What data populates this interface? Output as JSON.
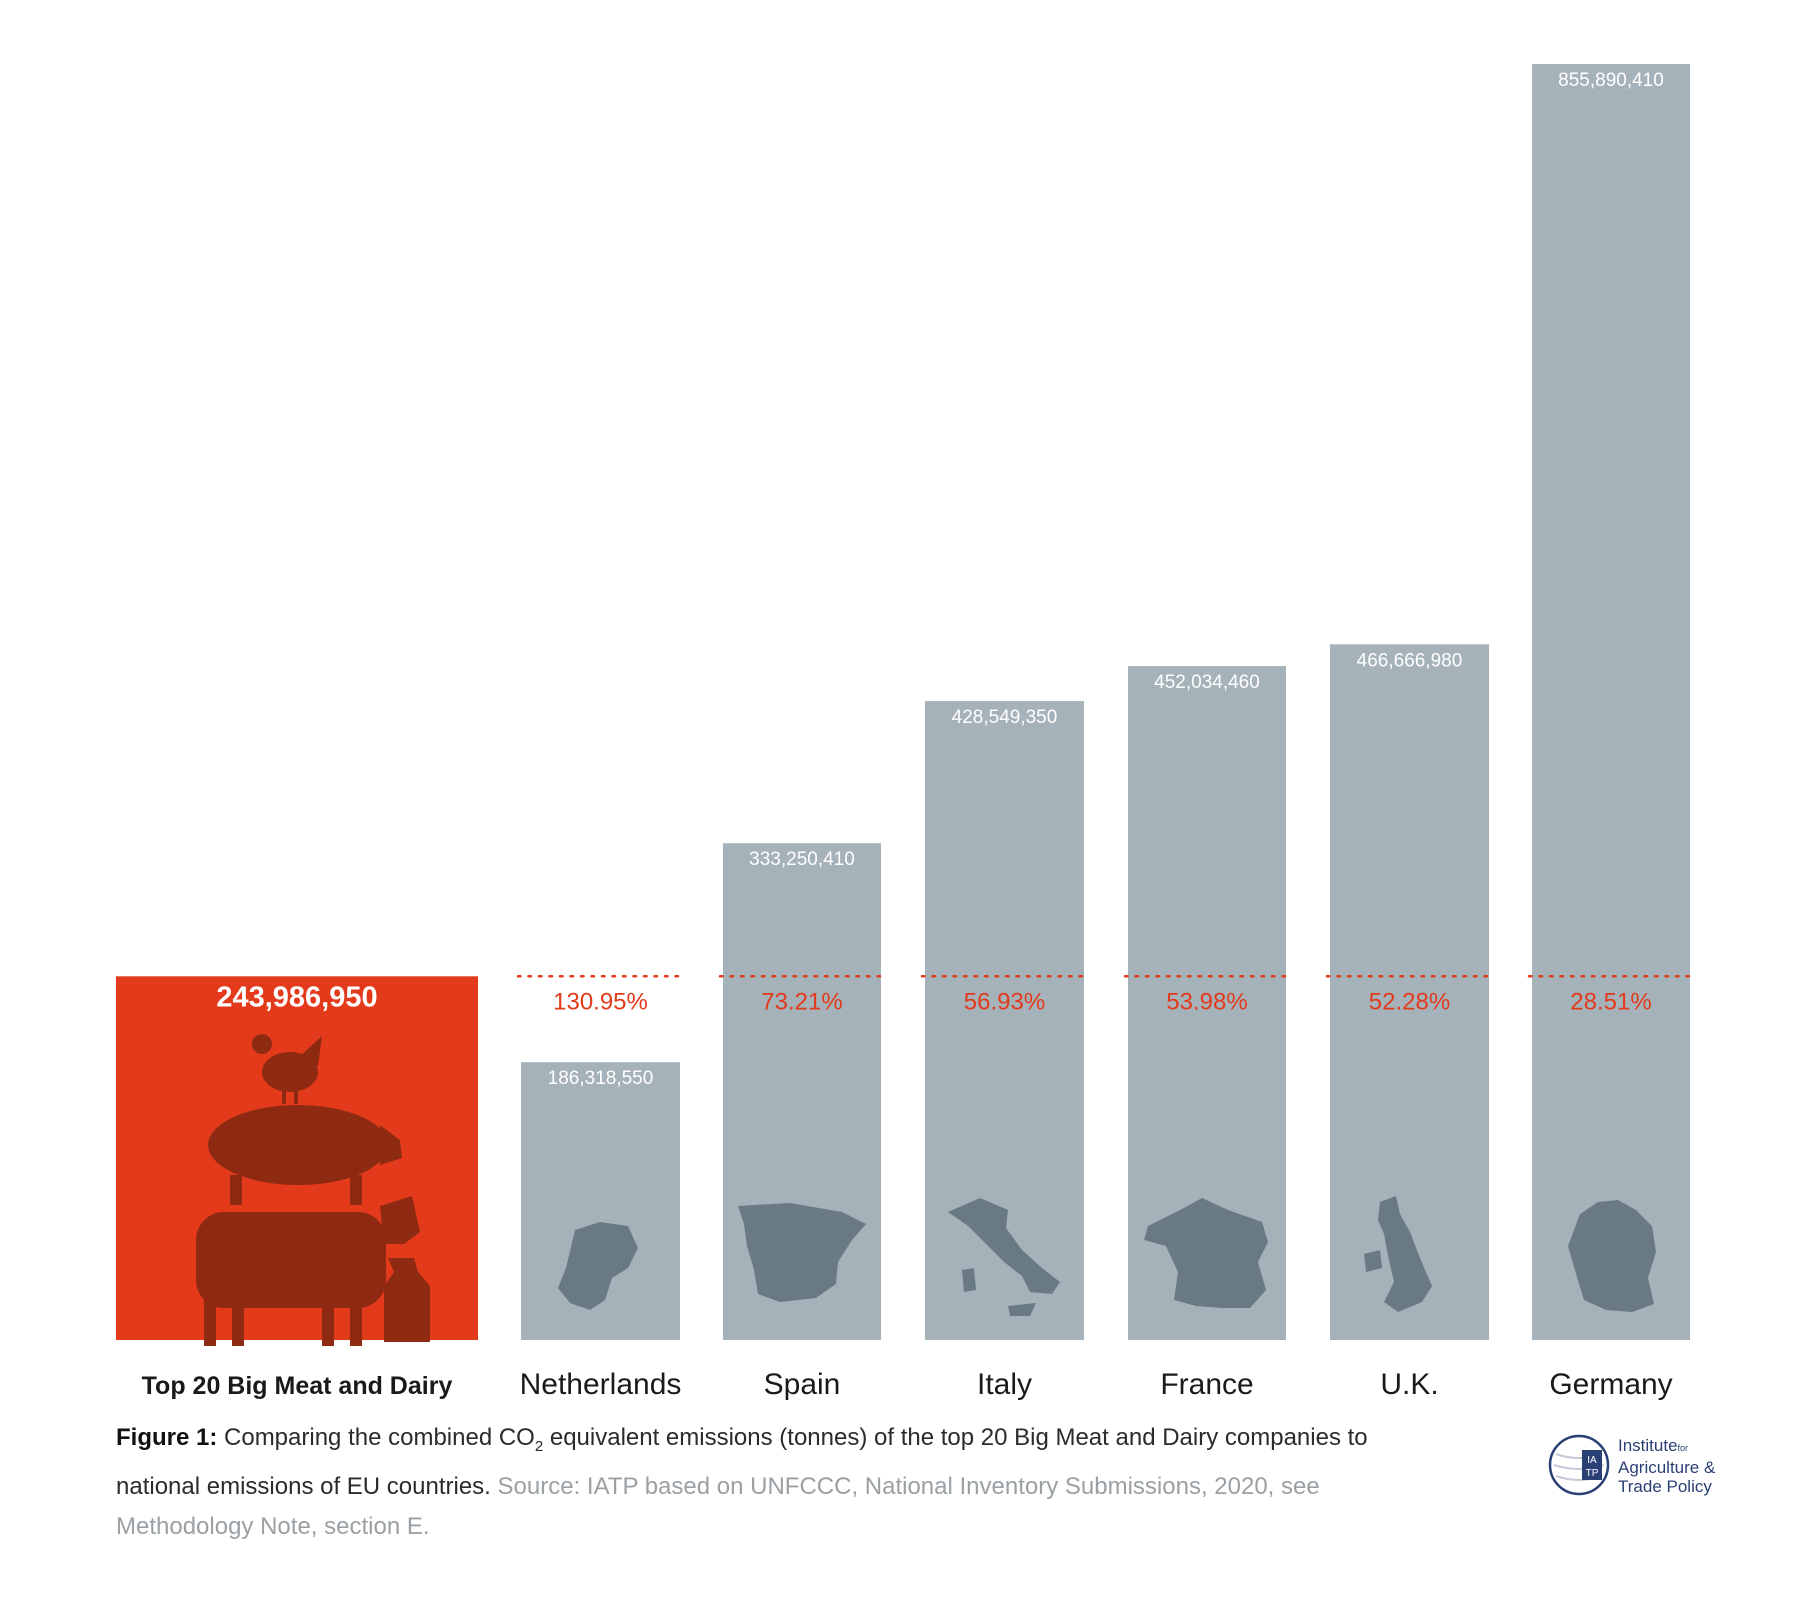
{
  "chart_data": {
    "type": "bar",
    "categories": [
      "Top 20 Big Meat and Dairy",
      "Netherlands",
      "Spain",
      "Italy",
      "France",
      "U.K.",
      "Germany"
    ],
    "values": [
      243986950,
      186318550,
      333250410,
      428549350,
      452034460,
      466666980,
      855890410
    ],
    "value_labels": [
      "243,986,950",
      "186,318,550",
      "333,250,410",
      "428,549,350",
      "452,034,460",
      "466,666,980",
      "855,890,410"
    ],
    "percentages": [
      "",
      "130.95%",
      "73.21%",
      "56.93%",
      "53.98%",
      "52.28%",
      "28.51%"
    ],
    "reference_line_value": 243986950,
    "ylim": [
      0,
      855890410
    ],
    "grid": false,
    "colors": {
      "highlight": "#e23a1a",
      "bar": "#a6b2ba",
      "silhouette_highlight": "#8f2a12",
      "silhouette_bar": "#6a7a83",
      "percent_text": "#e23a1a",
      "reference_line": "#e23a1a"
    },
    "icons": [
      "animal-stack-icon",
      "netherlands-map-icon",
      "spain-map-icon",
      "italy-map-icon",
      "france-map-icon",
      "uk-map-icon",
      "germany-map-icon"
    ]
  },
  "caption": {
    "figure_label": "Figure 1:",
    "text_before_sub": " Comparing the combined CO",
    "subscript": "2",
    "text_after_sub": " equivalent emissions (tonnes) of the top 20 Big Meat and Dairy companies to national emissions of EU countries.",
    "source": " Source: IATP based on UNFCCC, National Inventory Submissions, 2020, see Methodology Note, section E."
  },
  "logo": {
    "line1": "Institute",
    "line1_small": "for",
    "line2": "Agriculture &",
    "line3": "Trade Policy",
    "mark_top": "IA",
    "mark_bottom": "TP"
  }
}
